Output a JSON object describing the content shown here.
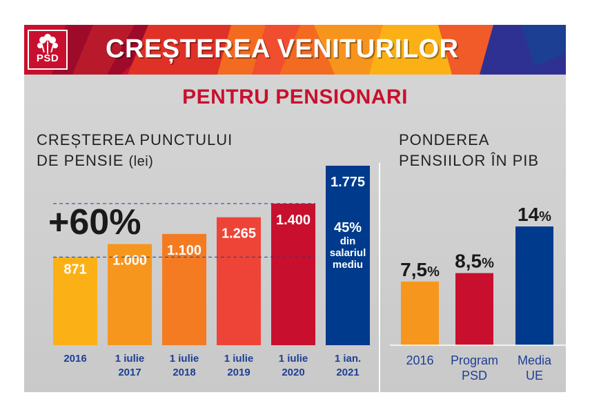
{
  "banner": {
    "logo_text": "PSD",
    "title": "CREȘTEREA VENITURILOR"
  },
  "subtitle": "PENTRU PENSIONARI",
  "left_section": {
    "title_line1": "CREȘTEREA PUNCTULUI",
    "title_line2": "DE PENSIE",
    "unit": "(lei)",
    "growth_label": "+60%"
  },
  "right_section": {
    "title_line1": "PONDEREA",
    "title_line2": "PENSIILOR ÎN PIB"
  },
  "colors": {
    "red": "#c8102e",
    "navy": "#003a8c",
    "orange": "#f5a623"
  },
  "chart_data": [
    {
      "type": "bar",
      "title": "CREȘTEREA PUNCTULUI DE PENSIE (lei)",
      "categories": [
        [
          "2016"
        ],
        [
          "1 iulie",
          "2017"
        ],
        [
          "1 iulie",
          "2018"
        ],
        [
          "1 iulie",
          "2019"
        ],
        [
          "1 iulie",
          "2020"
        ],
        [
          "1 ian.",
          "2021"
        ]
      ],
      "values": [
        871,
        1000,
        1100,
        1265,
        1400,
        1775
      ],
      "value_labels": [
        "871",
        "1.000",
        "1.100",
        "1.265",
        "1.400",
        "1.775"
      ],
      "colors": [
        "#fbb116",
        "#f7961d",
        "#f47b22",
        "#ee4437",
        "#c8102e",
        "#003a8c"
      ],
      "ylim": [
        0,
        1775
      ],
      "annotation": [
        "45%",
        "din",
        "salariul",
        "mediu"
      ]
    },
    {
      "type": "bar",
      "title": "PONDEREA PENSIILOR ÎN PIB",
      "categories": [
        [
          "2016"
        ],
        [
          "Program",
          "PSD"
        ],
        [
          "Media",
          "UE"
        ]
      ],
      "values": [
        7.5,
        8.5,
        14
      ],
      "value_labels": [
        "7,5",
        "8,5",
        "14"
      ],
      "unit_suffix": "%",
      "colors": [
        "#f7961d",
        "#c8102e",
        "#003a8c"
      ],
      "ylim": [
        0,
        14
      ]
    }
  ]
}
